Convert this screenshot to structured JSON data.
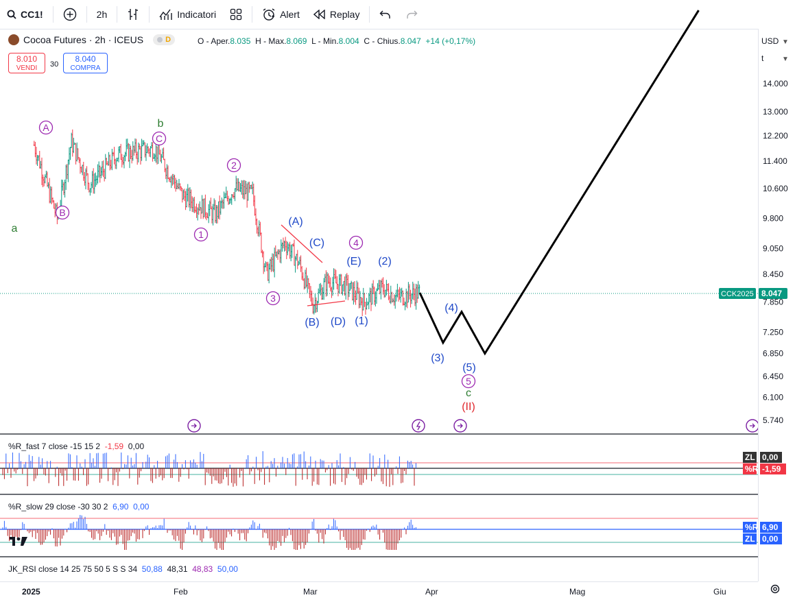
{
  "toolbar": {
    "symbol": "CC1!",
    "interval": "2h",
    "indicators_label": "Indicatori",
    "alert_label": "Alert",
    "replay_label": "Replay"
  },
  "legend": {
    "title": "Cocoa Futures · 2h · ICEUS",
    "flag": "D",
    "o_label": "O - Aper.",
    "o": "8.035",
    "h_label": "H - Max.",
    "h": "8.069",
    "l_label": "L - Min.",
    "l": "8.004",
    "c_label": "C - Chius.",
    "c": "8.047",
    "change": "+14 (+0,17%)"
  },
  "trade": {
    "sell_price": "8.010",
    "sell_label": "VENDI",
    "spread": "30",
    "buy_price": "8.040",
    "buy_label": "COMPRA"
  },
  "price_axis": {
    "currency": "USD",
    "unit": "t",
    "ticks": [
      "14.000",
      "13.000",
      "12.200",
      "11.400",
      "10.600",
      "9.800",
      "9.050",
      "8.450",
      "7.850",
      "7.250",
      "6.850",
      "6.450",
      "6.100",
      "5.740"
    ],
    "last_symbol": "CCK2025",
    "last_price": "8.047"
  },
  "time_axis": {
    "ticks": [
      "2025",
      "Feb",
      "Mar",
      "Apr",
      "Mag",
      "Giu"
    ]
  },
  "colors": {
    "up": "#089981",
    "down": "#f23645",
    "accent": "#2962ff",
    "wave_purple": "#9c27b0",
    "wave_green": "#2e7d32",
    "wave_blue": "#1e48c8",
    "wave_red": "#e0262b"
  },
  "chart_data": {
    "type": "line",
    "title": "Cocoa Futures · 2h · ICEUS",
    "xlabel": "",
    "ylabel": "",
    "x_ticks": [
      "2025",
      "Feb",
      "Mar",
      "Apr",
      "Mag",
      "Giu"
    ],
    "y_ticks": [
      14000,
      13000,
      12200,
      11400,
      10600,
      9800,
      9050,
      8450,
      7850,
      7250,
      6850,
      6450,
      6100,
      5740
    ],
    "y_scale": "log",
    "series": [
      {
        "name": "",
        "x": [
          "2025-01-02",
          "2025-01-07",
          "2025-01-10",
          "2025-01-14",
          "2025-01-20",
          "2025-01-28",
          "2025-02-03",
          "2025-02-10",
          "2025-02-14",
          "2025-02-18",
          "2025-02-21",
          "2025-02-25",
          "2025-02-28",
          "2025-03-03",
          "2025-03-06",
          "2025-03-10",
          "2025-03-14",
          "2025-03-18",
          "2025-03-21",
          "2025-03-26"
        ],
        "values": [
          11900,
          9800,
          12000,
          10700,
          11600,
          11800,
          10400,
          9900,
          10600,
          10450,
          8450,
          9200,
          8700,
          7800,
          8300,
          8200,
          7850,
          8150,
          7950,
          8047
        ]
      },
      {
        "name": "",
        "x": [
          "2025-03-26",
          "2025-03-31",
          "2025-04-04",
          "2025-04-09",
          "2025-05-25"
        ],
        "values": [
          8047,
          7050,
          7650,
          6850,
          17000
        ]
      }
    ],
    "annotations": [
      "a",
      "(A)",
      "(B)",
      "b",
      "(C)",
      "(1)",
      "(2)",
      "(3)",
      "(4)",
      "(A)",
      "(B)",
      "(C)",
      "(D)",
      "(E)",
      "(1)",
      "(2)",
      "(3)",
      "(4)",
      "(5)",
      "(5)",
      "c",
      "(II)"
    ],
    "indicators": [
      {
        "name": "%R_fast 7 close -15 15 2",
        "value": "-1,59",
        "zero": "0,00"
      },
      {
        "name": "%R_slow 29 close -30 30 2",
        "value": "6,90",
        "zero": "0,00"
      },
      {
        "name": "JK_RSI close 14 25 75 50 5 S S 34",
        "values": [
          "50,88",
          "48,31",
          "48,83",
          "50,00"
        ]
      }
    ],
    "indicator_tags": {
      "zl": "ZL",
      "r": "%R"
    }
  }
}
